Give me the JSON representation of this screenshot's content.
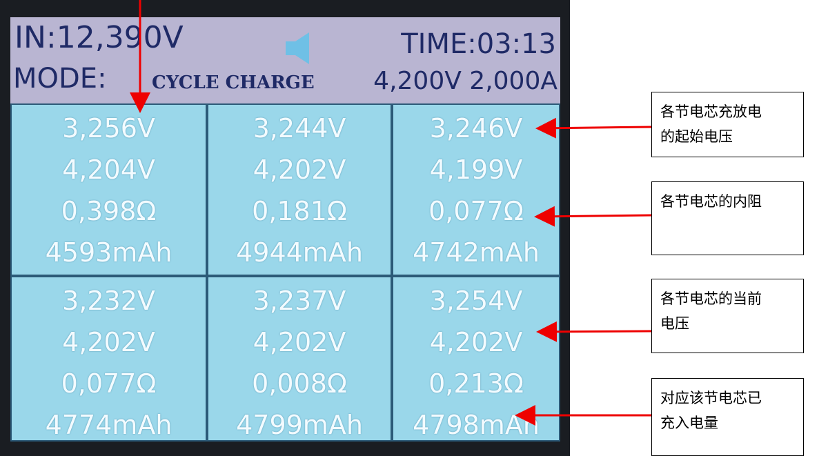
{
  "header": {
    "input": "IN:12,390V",
    "time": "TIME:03:13",
    "mode_label": "MODE:",
    "mode_value": "CYCLE CHARGE",
    "setting": "4,200V 2,000A"
  },
  "cells": [
    [
      "3,256V",
      "4,204V",
      "0,398Ω",
      "4593mAh"
    ],
    [
      "3,244V",
      "4,202V",
      "0,181Ω",
      "4944mAh"
    ],
    [
      "3,246V",
      "4,199V",
      "0,077Ω",
      "4742mAh"
    ],
    [
      "3,232V",
      "4,202V",
      "0,077Ω",
      "4774mAh"
    ],
    [
      "3,237V",
      "4,202V",
      "0,008Ω",
      "4799mAh"
    ],
    [
      "3,254V",
      "4,202V",
      "0,213Ω",
      "4798mAh"
    ]
  ],
  "annotations": [
    {
      "lines": [
        "各节电芯充放电",
        "的起始电压"
      ]
    },
    {
      "lines": [
        "各节电芯的内阻"
      ]
    },
    {
      "lines": [
        "各节电芯的当前",
        "电压"
      ]
    },
    {
      "lines": [
        "对应该节电芯已",
        "充入电量"
      ]
    }
  ]
}
